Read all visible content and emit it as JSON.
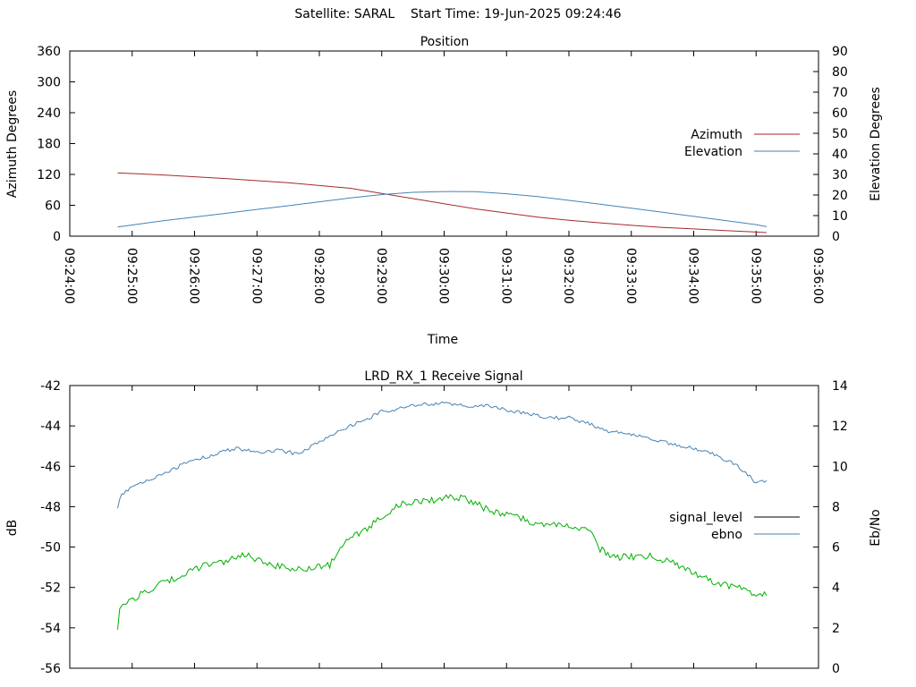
{
  "header": {
    "satellite_label": "Satellite: SARAL",
    "start_time_label": "Start Time: 19-Jun-2025 09:24:46"
  },
  "chart_data": [
    {
      "type": "line",
      "title": "Position",
      "xlabel": "Time",
      "ylabel": "Azimuth Degrees",
      "y2label": "Elevation Degrees",
      "xlim": [
        "09:24:00",
        "09:36:00"
      ],
      "ylim": [
        0,
        360
      ],
      "y2lim": [
        0,
        90
      ],
      "x_ticks": [
        "09:24:00",
        "09:25:00",
        "09:26:00",
        "09:27:00",
        "09:28:00",
        "09:29:00",
        "09:30:00",
        "09:31:00",
        "09:32:00",
        "09:33:00",
        "09:34:00",
        "09:35:00",
        "09:36:00"
      ],
      "y_ticks": [
        0,
        60,
        120,
        180,
        240,
        300,
        360
      ],
      "y2_ticks": [
        0,
        10,
        20,
        30,
        40,
        50,
        60,
        70,
        80,
        90
      ],
      "legend_position": "right",
      "series": [
        {
          "name": "Azimuth",
          "axis": "y",
          "color": "#a52a2a",
          "points": [
            [
              "09:24:46",
              123
            ],
            [
              "09:25:30",
              119
            ],
            [
              "09:26:30",
              112
            ],
            [
              "09:27:30",
              104
            ],
            [
              "09:28:30",
              93
            ],
            [
              "09:29:00",
              83
            ],
            [
              "09:29:30",
              73
            ],
            [
              "09:30:00",
              63
            ],
            [
              "09:30:30",
              53
            ],
            [
              "09:31:00",
              45
            ],
            [
              "09:31:30",
              37
            ],
            [
              "09:32:00",
              31
            ],
            [
              "09:32:30",
              26
            ],
            [
              "09:33:00",
              21
            ],
            [
              "09:33:30",
              17
            ],
            [
              "09:34:00",
              14
            ],
            [
              "09:34:30",
              11
            ],
            [
              "09:35:00",
              8
            ],
            [
              "09:35:10",
              7
            ]
          ]
        },
        {
          "name": "Elevation",
          "axis": "y2",
          "color": "#4682b4",
          "points": [
            [
              "09:24:46",
              4.5
            ],
            [
              "09:25:30",
              7.5
            ],
            [
              "09:26:00",
              9.3
            ],
            [
              "09:26:30",
              11.1
            ],
            [
              "09:27:00",
              13
            ],
            [
              "09:27:30",
              14.8
            ],
            [
              "09:28:00",
              16.7
            ],
            [
              "09:28:30",
              18.6
            ],
            [
              "09:29:00",
              20.2
            ],
            [
              "09:29:30",
              21.3
            ],
            [
              "09:30:00",
              21.7
            ],
            [
              "09:30:30",
              21.6
            ],
            [
              "09:31:00",
              20.6
            ],
            [
              "09:31:30",
              19.2
            ],
            [
              "09:32:00",
              17.4
            ],
            [
              "09:32:30",
              15.5
            ],
            [
              "09:33:00",
              13.6
            ],
            [
              "09:33:30",
              11.6
            ],
            [
              "09:34:00",
              9.6
            ],
            [
              "09:34:30",
              7.6
            ],
            [
              "09:35:00",
              5.6
            ],
            [
              "09:35:10",
              4.6
            ]
          ]
        }
      ]
    },
    {
      "type": "line",
      "title": "LRD_RX_1 Receive Signal",
      "ylabel": "dB",
      "y2label": "Eb/No",
      "xlim": [
        "09:24:00",
        "09:36:00"
      ],
      "ylim": [
        -56,
        -42
      ],
      "y2lim": [
        0,
        14
      ],
      "y_ticks": [
        -56,
        -54,
        -52,
        -50,
        -48,
        -46,
        -44,
        -42
      ],
      "y2_ticks": [
        0,
        2,
        4,
        6,
        8,
        10,
        12,
        14
      ],
      "legend_position": "right",
      "series": [
        {
          "name": "ebno",
          "axis": "y2",
          "color": "#4682b4",
          "points": [
            [
              "09:24:46",
              8
            ],
            [
              "09:24:50",
              8.6
            ],
            [
              "09:25:00",
              9
            ],
            [
              "09:25:20",
              9.4
            ],
            [
              "09:25:40",
              9.9
            ],
            [
              "09:26:00",
              10.3
            ],
            [
              "09:26:20",
              10.6
            ],
            [
              "09:26:40",
              10.9
            ],
            [
              "09:27:00",
              10.7
            ],
            [
              "09:27:20",
              10.8
            ],
            [
              "09:27:40",
              10.6
            ],
            [
              "09:28:00",
              11.2
            ],
            [
              "09:28:20",
              11.8
            ],
            [
              "09:28:40",
              12.2
            ],
            [
              "09:29:00",
              12.7
            ],
            [
              "09:29:20",
              12.9
            ],
            [
              "09:29:40",
              13.1
            ],
            [
              "09:30:00",
              13.1
            ],
            [
              "09:30:20",
              13
            ],
            [
              "09:30:40",
              13
            ],
            [
              "09:31:00",
              12.8
            ],
            [
              "09:31:20",
              12.6
            ],
            [
              "09:31:40",
              12.4
            ],
            [
              "09:32:00",
              12.4
            ],
            [
              "09:32:20",
              12.1
            ],
            [
              "09:32:40",
              11.7
            ],
            [
              "09:33:00",
              11.6
            ],
            [
              "09:33:20",
              11.3
            ],
            [
              "09:33:40",
              11.1
            ],
            [
              "09:34:00",
              10.9
            ],
            [
              "09:34:20",
              10.6
            ],
            [
              "09:34:40",
              10.1
            ],
            [
              "09:35:00",
              9.2
            ],
            [
              "09:35:10",
              9.3
            ]
          ]
        },
        {
          "name": "signal_level",
          "axis": "y",
          "color": "#000000",
          "points": []
        },
        {
          "name": "signal_level (green trace)",
          "axis": "y",
          "color": "#00b000",
          "points": [
            [
              "09:24:46",
              -54.1
            ],
            [
              "09:24:48",
              -53
            ],
            [
              "09:24:55",
              -52.8
            ],
            [
              "09:25:10",
              -52.3
            ],
            [
              "09:25:30",
              -51.8
            ],
            [
              "09:25:50",
              -51.3
            ],
            [
              "09:26:10",
              -50.9
            ],
            [
              "09:26:30",
              -50.7
            ],
            [
              "09:26:50",
              -50.4
            ],
            [
              "09:27:10",
              -50.9
            ],
            [
              "09:27:30",
              -51
            ],
            [
              "09:27:50",
              -51.1
            ],
            [
              "09:28:10",
              -50.9
            ],
            [
              "09:28:20",
              -50.1
            ],
            [
              "09:28:30",
              -49.6
            ],
            [
              "09:28:50",
              -48.9
            ],
            [
              "09:29:10",
              -48.1
            ],
            [
              "09:29:20",
              -47.8
            ],
            [
              "09:29:30",
              -47.8
            ],
            [
              "09:29:50",
              -47.7
            ],
            [
              "09:30:00",
              -47.6
            ],
            [
              "09:30:10",
              -47.5
            ],
            [
              "09:30:20",
              -47.6
            ],
            [
              "09:30:40",
              -48.1
            ],
            [
              "09:31:00",
              -48.4
            ],
            [
              "09:31:20",
              -48.7
            ],
            [
              "09:31:40",
              -48.9
            ],
            [
              "09:32:00",
              -49
            ],
            [
              "09:32:20",
              -49.2
            ],
            [
              "09:32:30",
              -50.1
            ],
            [
              "09:32:45",
              -50.5
            ],
            [
              "09:33:00",
              -50.5
            ],
            [
              "09:33:20",
              -50.4
            ],
            [
              "09:33:40",
              -50.8
            ],
            [
              "09:34:00",
              -51.3
            ],
            [
              "09:34:20",
              -51.7
            ],
            [
              "09:34:40",
              -52
            ],
            [
              "09:35:00",
              -52.3
            ],
            [
              "09:35:10",
              -52.4
            ]
          ]
        }
      ]
    }
  ]
}
